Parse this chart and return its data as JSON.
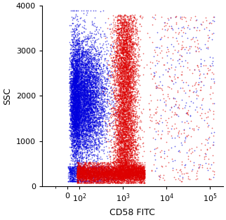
{
  "title": "",
  "xlabel": "CD58 FITC",
  "ylabel": "SSC",
  "xlim": [
    -200,
    200000
  ],
  "ylim": [
    0,
    4000
  ],
  "yticks": [
    0,
    1000,
    2000,
    3000,
    4000
  ],
  "blue_color": "#0000dd",
  "red_color": "#dd0000",
  "point_size": 1.5,
  "alpha": 0.6,
  "background_color": "#ffffff",
  "random_seed": 42,
  "n_blue_main": 8000,
  "n_red_vertical": 6000,
  "n_red_horizontal": 5000,
  "n_sparse_red": 400,
  "n_sparse_blue": 200
}
